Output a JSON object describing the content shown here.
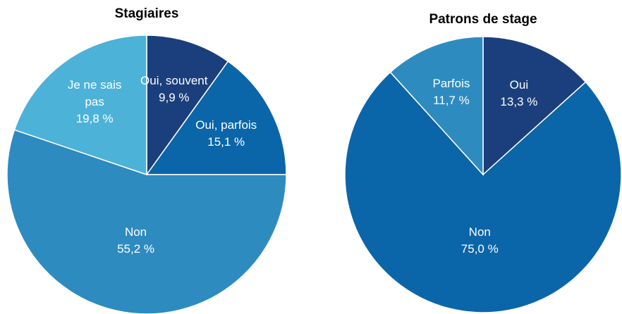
{
  "chart_data": [
    {
      "type": "pie",
      "title": "Stagiaires",
      "categories": [
        "Oui, souvent",
        "Oui, parfois",
        "Non",
        "Je ne sais pas"
      ],
      "values": [
        9.9,
        15.1,
        55.2,
        19.8
      ],
      "value_labels": [
        "9,9 %",
        "15,1 %",
        "55,2 %",
        "19,8 %"
      ],
      "colors": [
        "#1b3f7c",
        "#0b65a9",
        "#2e8bc0",
        "#4db2d8"
      ]
    },
    {
      "type": "pie",
      "title": "Patrons de stage",
      "categories": [
        "Oui",
        "Non",
        "Parfois"
      ],
      "values": [
        13.3,
        75.0,
        11.7
      ],
      "value_labels": [
        "13,3 %",
        "75,0 %",
        "11,7 %"
      ],
      "colors": [
        "#1b3f7c",
        "#0b65a9",
        "#2e8bc0"
      ]
    }
  ]
}
